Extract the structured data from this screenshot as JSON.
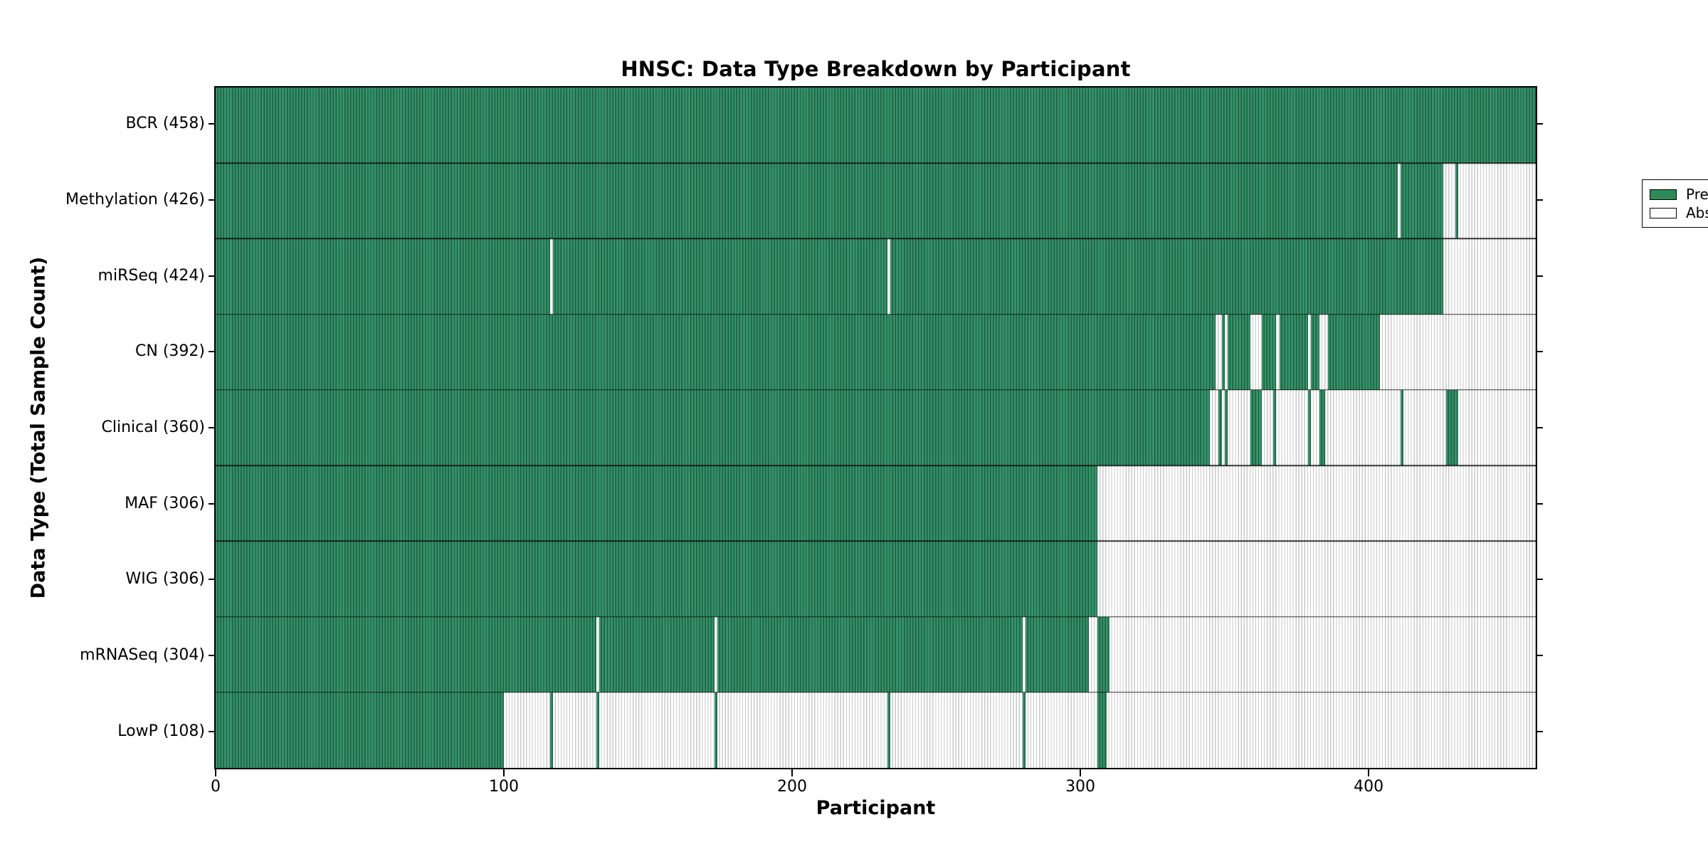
{
  "colors": {
    "present": "#2e8b57",
    "present_stripe_dark": "#1d5f3d",
    "absent": "#ffffff",
    "absent_stripe": "#c9c9c9",
    "axis": "#000000"
  },
  "chart_data": {
    "type": "heatmap",
    "title": "HNSC: Data Type Breakdown by Participant",
    "xlabel": "Participant",
    "ylabel": "Data Type (Total Sample Count)",
    "x_range": [
      0,
      458
    ],
    "x_ticks": [
      0,
      100,
      200,
      300,
      400
    ],
    "grid": "row-separators-only",
    "legend_position": "upper right",
    "legend": [
      "Present",
      "Absent"
    ],
    "rows": [
      {
        "name": "BCR",
        "label": "BCR (458)",
        "total": 458,
        "present_ranges": [
          [
            0,
            458
          ]
        ]
      },
      {
        "name": "Methylation",
        "label": "Methylation (426)",
        "total": 426,
        "present_ranges": [
          [
            0,
            410
          ],
          [
            411,
            426
          ],
          [
            430,
            431
          ]
        ]
      },
      {
        "name": "miRSeq",
        "label": "miRSeq (424)",
        "total": 424,
        "present_ranges": [
          [
            0,
            116
          ],
          [
            117,
            233
          ],
          [
            234,
            426
          ]
        ]
      },
      {
        "name": "CN",
        "label": "CN (392)",
        "total": 392,
        "present_ranges": [
          [
            0,
            347
          ],
          [
            349,
            350
          ],
          [
            351,
            359
          ],
          [
            363,
            368
          ],
          [
            369,
            379
          ],
          [
            380,
            383
          ],
          [
            386,
            404
          ]
        ]
      },
      {
        "name": "Clinical",
        "label": "Clinical (360)",
        "total": 360,
        "present_ranges": [
          [
            0,
            345
          ],
          [
            348,
            349
          ],
          [
            350,
            351
          ],
          [
            359,
            363
          ],
          [
            367,
            368
          ],
          [
            379,
            380
          ],
          [
            383,
            385
          ],
          [
            411,
            412
          ],
          [
            427,
            431
          ]
        ]
      },
      {
        "name": "MAF",
        "label": "MAF (306)",
        "total": 306,
        "present_ranges": [
          [
            0,
            306
          ]
        ]
      },
      {
        "name": "WIG",
        "label": "WIG (306)",
        "total": 306,
        "present_ranges": [
          [
            0,
            306
          ]
        ]
      },
      {
        "name": "mRNASeq",
        "label": "mRNASeq (304)",
        "total": 304,
        "present_ranges": [
          [
            0,
            132
          ],
          [
            133,
            173
          ],
          [
            174,
            280
          ],
          [
            281,
            303
          ],
          [
            306,
            310
          ]
        ]
      },
      {
        "name": "LowP",
        "label": "LowP (108)",
        "total": 108,
        "present_ranges": [
          [
            0,
            100
          ],
          [
            116,
            117
          ],
          [
            132,
            133
          ],
          [
            173,
            174
          ],
          [
            233,
            234
          ],
          [
            280,
            281
          ],
          [
            306,
            309
          ]
        ]
      }
    ]
  }
}
